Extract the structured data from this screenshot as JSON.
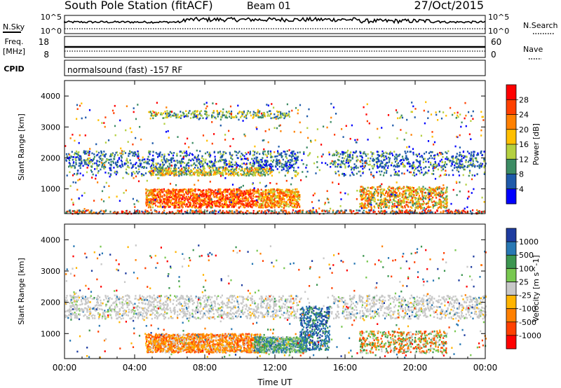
{
  "header": {
    "station": "South Pole Station (fitACF)",
    "beam": "Beam 01",
    "date": "27/Oct/2015"
  },
  "summary_labels": {
    "nsky": "N.Sky",
    "nsearch": "N.Search",
    "freq": "Freq.",
    "freq_unit": "[MHz]",
    "nave": "Nave",
    "cpid": "CPID",
    "cpid_text": "normalsound (fast) -157 RF",
    "noise_ticks": [
      "10^5",
      "10^0"
    ],
    "noise_ticks_right": [
      "10^5",
      "10^0"
    ],
    "freq_ticks": [
      "18",
      "8"
    ],
    "nave_ticks": [
      "60",
      "0"
    ]
  },
  "chart_data": [
    {
      "type": "heatmap",
      "title": "",
      "xlabel": "",
      "ylabel": "Slant Range [km]",
      "colorbar_label": "Power [dB]",
      "colorbar_ticks": [
        "28",
        "24",
        "20",
        "16",
        "12",
        "8",
        "4"
      ],
      "colorbar_colors": [
        "#ff0000",
        "#ff4000",
        "#ff8000",
        "#ffbf00",
        "#b4d040",
        "#3c8c64",
        "#1e5aaa",
        "#0000ff"
      ],
      "x_ticks": [
        "00:00",
        "04:00",
        "08:00",
        "12:00",
        "16:00",
        "20:00",
        "00:00"
      ],
      "y_ticks": [
        "4000",
        "3000",
        "2000",
        "1000"
      ],
      "xlim": [
        "00:00",
        "24:00"
      ],
      "ylim": [
        200,
        4500
      ],
      "features": [
        {
          "time_start": 0,
          "time_end": 24,
          "range_start": 1700,
          "range_end": 2200,
          "dominant": "8-16 dB"
        },
        {
          "time_start": 4.5,
          "time_end": 13.5,
          "range_start": 400,
          "range_end": 1000,
          "dominant": "20-28 dB"
        },
        {
          "time_start": 17,
          "time_end": 22,
          "range_start": 400,
          "range_end": 1000,
          "dominant": "12-24 dB"
        }
      ]
    },
    {
      "type": "heatmap",
      "title": "",
      "xlabel": "Time UT",
      "ylabel": "Slant Range [km]",
      "colorbar_label": "Velocity [m s^-1]",
      "colorbar_ticks": [
        "1000",
        "500",
        "100",
        "25",
        "-25",
        "-100",
        "-500",
        "-1000"
      ],
      "colorbar_colors": [
        "#1e3ca0",
        "#2878b4",
        "#3c9650",
        "#78c850",
        "#c8c8c8",
        "#ffb400",
        "#ff8000",
        "#ff4000",
        "#ff0000"
      ],
      "x_ticks": [
        "00:00",
        "04:00",
        "08:00",
        "12:00",
        "16:00",
        "20:00",
        "00:00"
      ],
      "y_ticks": [
        "4000",
        "3000",
        "2000",
        "1000"
      ],
      "xlim": [
        "00:00",
        "24:00"
      ],
      "ylim": [
        200,
        4500
      ],
      "features": [
        {
          "time_start": 0,
          "time_end": 24,
          "range_start": 1500,
          "range_end": 2200,
          "dominant": "-25 to 25"
        },
        {
          "time_start": 4.5,
          "time_end": 11,
          "range_start": 400,
          "range_end": 1000,
          "dominant": "-100 to -500"
        },
        {
          "time_start": 13.5,
          "time_end": 15,
          "range_start": 500,
          "range_end": 2000,
          "dominant": "500 to 1000"
        }
      ]
    }
  ]
}
